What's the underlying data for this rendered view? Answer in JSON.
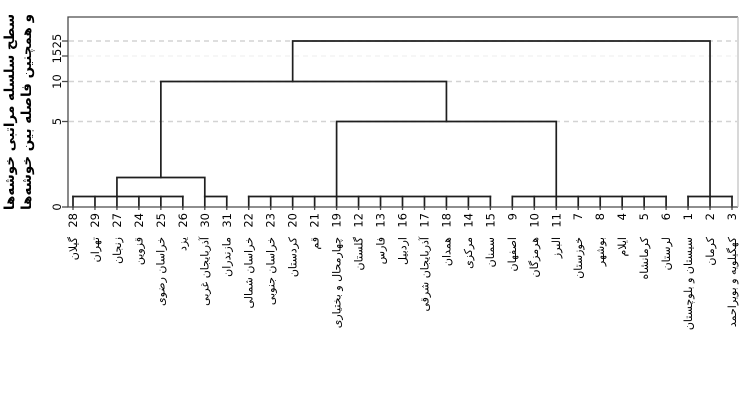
{
  "chart_data": {
    "type": "dendrogram",
    "title": "",
    "ylabel_lines": [
      "سطح سلسله مراتبی خوشه‌ها",
      "و همچنین فاصله بین خوشه‌ها"
    ],
    "y_ticks": [
      0,
      5,
      10,
      15,
      25
    ],
    "grid_levels": [
      5,
      10,
      15,
      25
    ],
    "ylim": [
      0,
      25
    ],
    "grid": "dashed horizontal",
    "leaves": [
      {
        "num": "28",
        "name": "گیلان"
      },
      {
        "num": "29",
        "name": "تهران"
      },
      {
        "num": "27",
        "name": "زنجان"
      },
      {
        "num": "24",
        "name": "قزوین"
      },
      {
        "num": "25",
        "name": "خراسان رضوی"
      },
      {
        "num": "26",
        "name": "یزد"
      },
      {
        "num": "30",
        "name": "آذربایجان غربی"
      },
      {
        "num": "31",
        "name": "مازندران"
      },
      {
        "num": "22",
        "name": "خراسان شمالی"
      },
      {
        "num": "23",
        "name": "خراسان جنوبی"
      },
      {
        "num": "20",
        "name": "کردستان"
      },
      {
        "num": "21",
        "name": "قم"
      },
      {
        "num": "19",
        "name": "چهارمحال و بختیاری"
      },
      {
        "num": "12",
        "name": "گلستان"
      },
      {
        "num": "13",
        "name": "فارس"
      },
      {
        "num": "16",
        "name": "اردبیل"
      },
      {
        "num": "17",
        "name": "آذربایجان شرقی"
      },
      {
        "num": "18",
        "name": "همدان"
      },
      {
        "num": "14",
        "name": "مرکزی"
      },
      {
        "num": "15",
        "name": "سمنان"
      },
      {
        "num": "9",
        "name": "اصفهان"
      },
      {
        "num": "10",
        "name": "هرمزگان"
      },
      {
        "num": "11",
        "name": "البرز"
      },
      {
        "num": "7",
        "name": "خوزستان"
      },
      {
        "num": "8",
        "name": "بوشهر"
      },
      {
        "num": "4",
        "name": "ایلام"
      },
      {
        "num": "5",
        "name": "کرمانشاه"
      },
      {
        "num": "6",
        "name": "لرستان"
      },
      {
        "num": "1",
        "name": "سیستان و بلوچستان"
      },
      {
        "num": "2",
        "name": "کرمان"
      },
      {
        "num": "3",
        "name": "کهگیلویه و بویراحمد"
      }
    ],
    "tree": {
      "leaf_top_height": 1,
      "flat_bars": [
        {
          "height": 1,
          "from_leaf": 0,
          "to_leaf": 5,
          "members": "28,29,27,24,25,26"
        },
        {
          "height": 1,
          "from_leaf": 6,
          "to_leaf": 7,
          "members": "30,31"
        },
        {
          "height": 1,
          "from_leaf": 8,
          "to_leaf": 19,
          "members": "22,23,20,21,19,12,13,16,17,18,14,15"
        },
        {
          "height": 1,
          "from_leaf": 20,
          "to_leaf": 27,
          "members": "9,10,11,7,8,4,5,6"
        },
        {
          "height": 1,
          "from_leaf": 28,
          "to_leaf": 30,
          "members": "1,2,3"
        }
      ],
      "merges": [
        {
          "height": 2,
          "left_leaf": 2,
          "right_leaf": 6,
          "left_child_height": 1,
          "right_child_height": 1
        },
        {
          "height": 5,
          "left_leaf": 12,
          "right_leaf": 22,
          "left_child_height": 1,
          "right_child_height": 1
        },
        {
          "height": 10,
          "left_leaf": 4,
          "right_leaf": 17,
          "left_child_height": 2,
          "right_child_height": 5
        },
        {
          "height": 25,
          "left_leaf": 10,
          "right_leaf": 29,
          "left_child_height": 10,
          "right_child_height": 1
        }
      ]
    },
    "colors": {
      "line": "#1f1f1f",
      "grid": "#d3d3d3",
      "box": "#4a4a4a",
      "box_right": "#c3c3c3",
      "text": "#000000",
      "background": "#ffffff"
    }
  }
}
